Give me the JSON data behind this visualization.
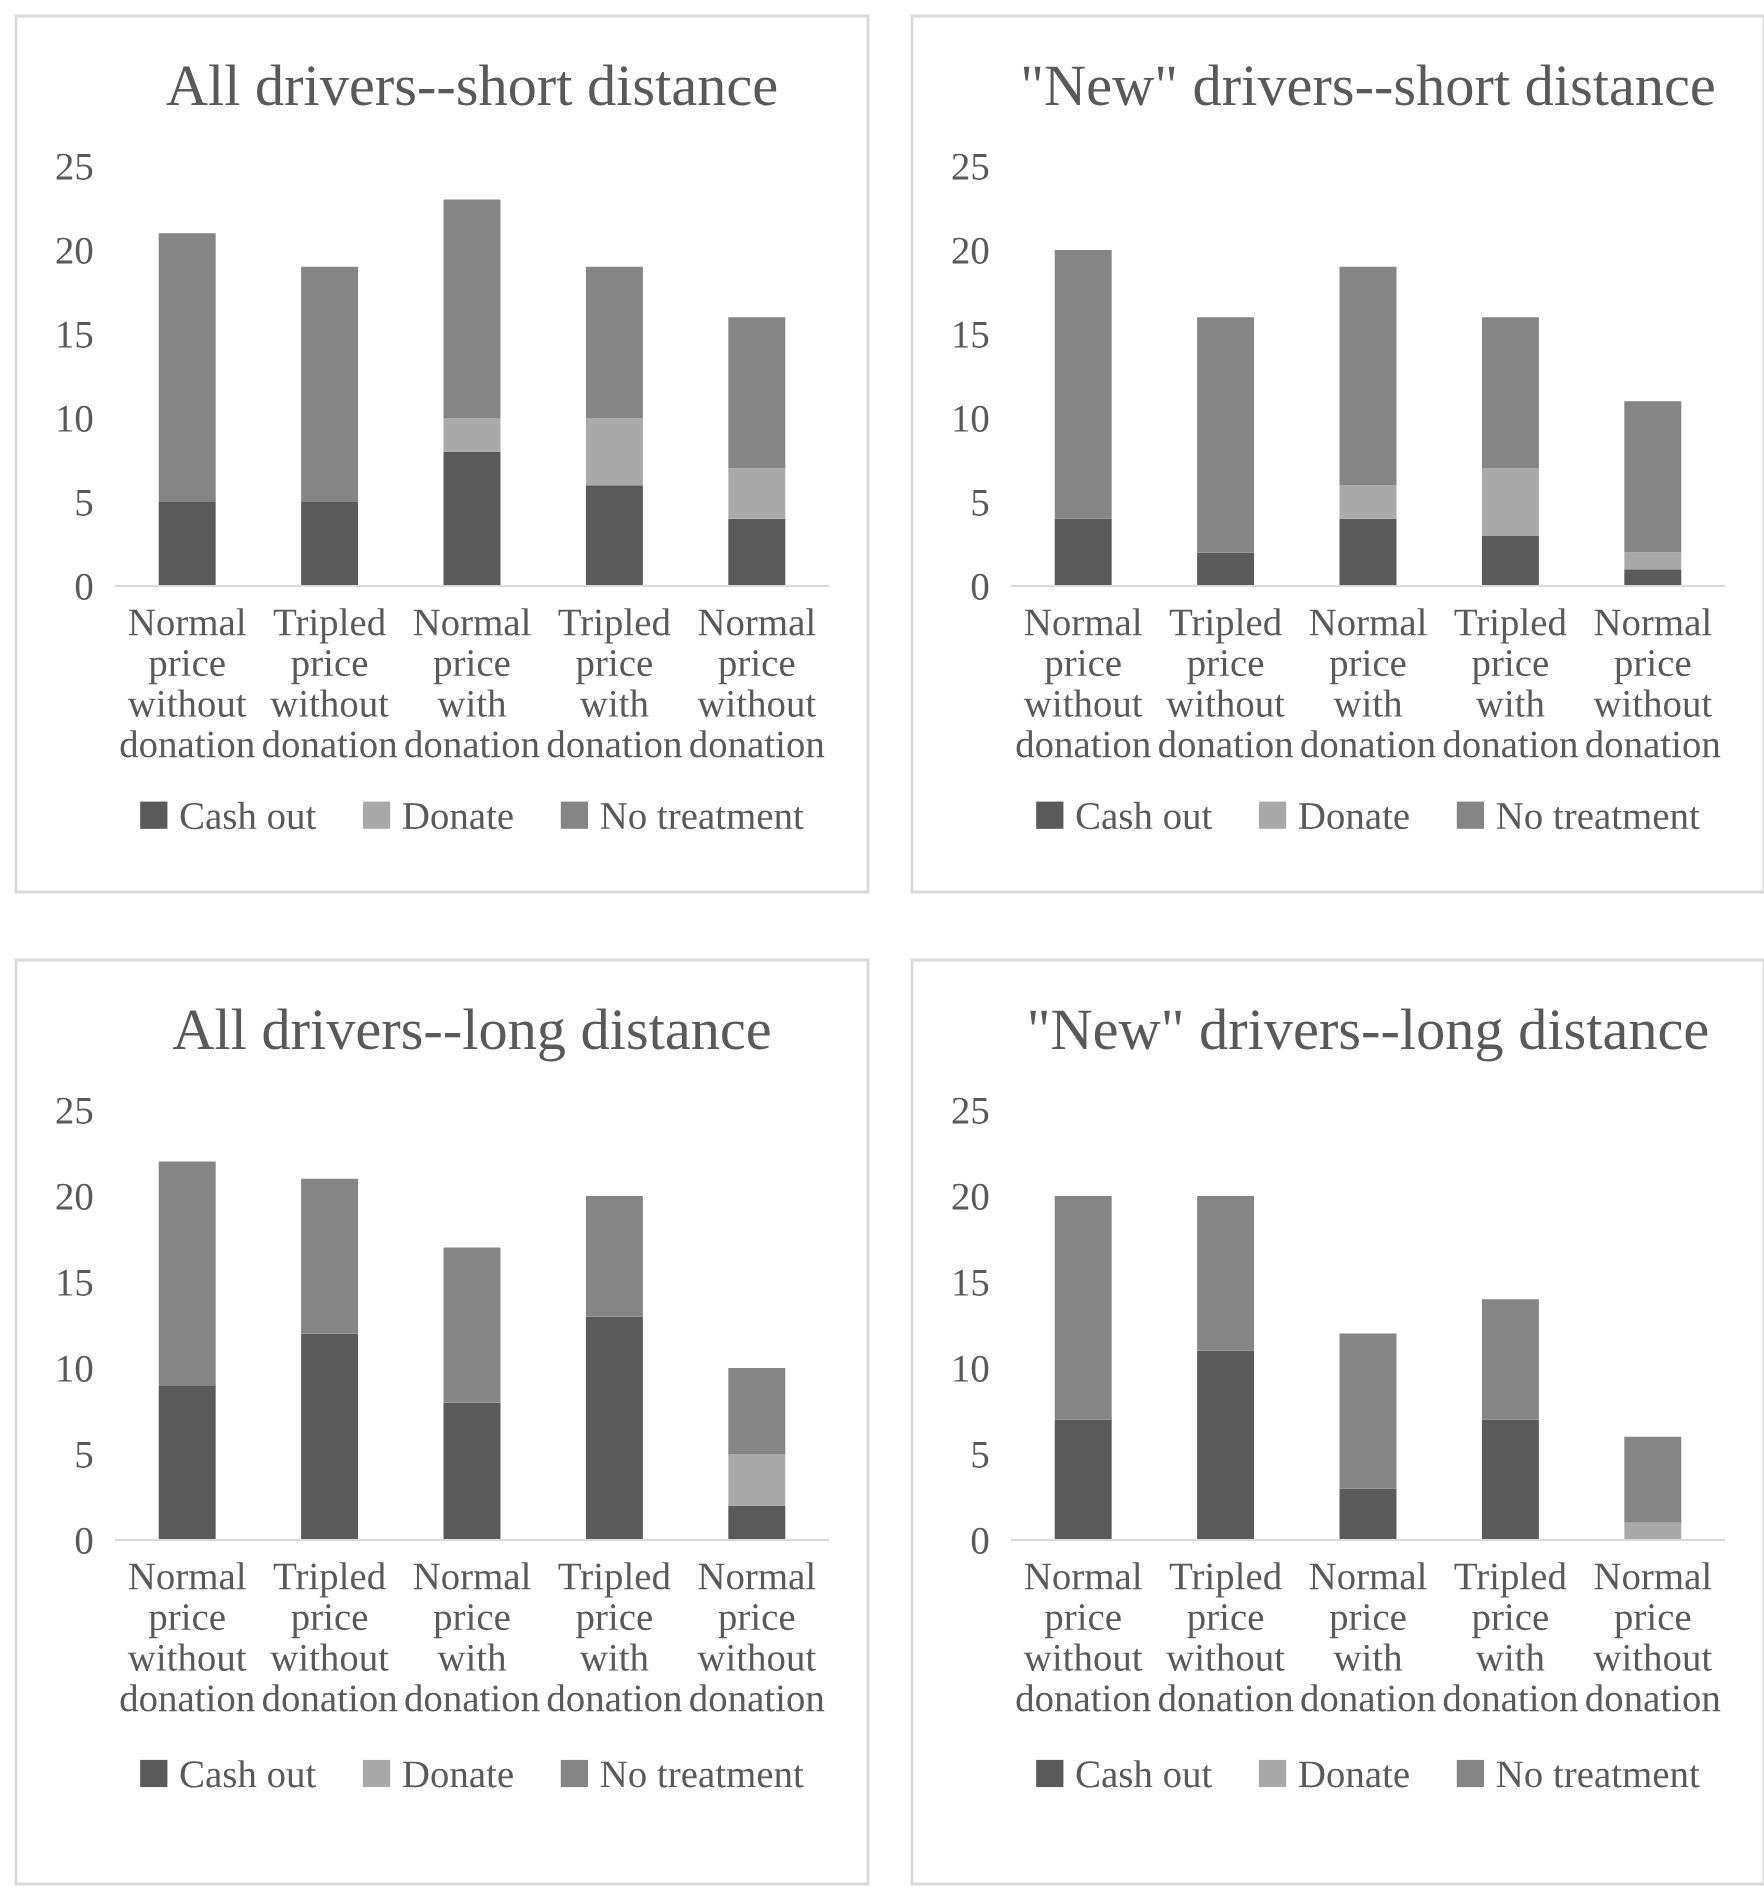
{
  "chart_data": [
    {
      "type": "bar",
      "title": "All drivers--short distance",
      "categories": [
        "Normal\nprice\nwithout\ndonation",
        "Tripled\nprice\nwithout\ndonation",
        "Normal\nprice\nwith\ndonation",
        "Tripled\nprice\nwith\ndonation",
        "Normal\nprice\nwithout\ndonation"
      ],
      "stacked": true,
      "ylim": [
        0,
        25
      ],
      "yticks": [
        0,
        5,
        10,
        15,
        20,
        25
      ],
      "grid": false,
      "legend": "bottom",
      "series": [
        {
          "name": "Cash out",
          "color": "#5a5a5a",
          "values": [
            5,
            5,
            8,
            6,
            4
          ]
        },
        {
          "name": "Donate",
          "color": "#a9a9a9",
          "values": [
            0,
            0,
            2,
            4,
            3
          ]
        },
        {
          "name": "No treatment",
          "color": "#858585",
          "values": [
            16,
            14,
            13,
            9,
            9
          ]
        }
      ]
    },
    {
      "type": "bar",
      "title": "\"New\" drivers--short distance",
      "categories": [
        "Normal\nprice\nwithout\ndonation",
        "Tripled\nprice\nwithout\ndonation",
        "Normal\nprice\nwith\ndonation",
        "Tripled\nprice\nwith\ndonation",
        "Normal\nprice\nwithout\ndonation"
      ],
      "stacked": true,
      "ylim": [
        0,
        25
      ],
      "yticks": [
        0,
        5,
        10,
        15,
        20,
        25
      ],
      "grid": false,
      "legend": "bottom",
      "series": [
        {
          "name": "Cash out",
          "color": "#5a5a5a",
          "values": [
            4,
            2,
            4,
            3,
            1
          ]
        },
        {
          "name": "Donate",
          "color": "#a9a9a9",
          "values": [
            0,
            0,
            2,
            4,
            1
          ]
        },
        {
          "name": "No treatment",
          "color": "#858585",
          "values": [
            16,
            14,
            13,
            9,
            9
          ]
        }
      ]
    },
    {
      "type": "bar",
      "title": "All drivers--long distance",
      "categories": [
        "Normal\nprice\nwithout\ndonation",
        "Tripled\nprice\nwithout\ndonation",
        "Normal\nprice\nwith\ndonation",
        "Tripled\nprice\nwith\ndonation",
        "Normal\nprice\nwithout\ndonation"
      ],
      "stacked": true,
      "ylim": [
        0,
        25
      ],
      "yticks": [
        0,
        5,
        10,
        15,
        20,
        25
      ],
      "grid": false,
      "legend": "bottom",
      "series": [
        {
          "name": "Cash out",
          "color": "#5a5a5a",
          "values": [
            9,
            12,
            8,
            13,
            2
          ]
        },
        {
          "name": "Donate",
          "color": "#a9a9a9",
          "values": [
            0,
            0,
            0,
            0,
            3
          ]
        },
        {
          "name": "No treatment",
          "color": "#858585",
          "values": [
            13,
            9,
            9,
            7,
            5
          ]
        }
      ]
    },
    {
      "type": "bar",
      "title": "\"New\" drivers--long distance",
      "categories": [
        "Normal\nprice\nwithout\ndonation",
        "Tripled\nprice\nwithout\ndonation",
        "Normal\nprice\nwith\ndonation",
        "Tripled\nprice\nwith\ndonation",
        "Normal\nprice\nwithout\ndonation"
      ],
      "stacked": true,
      "ylim": [
        0,
        25
      ],
      "yticks": [
        0,
        5,
        10,
        15,
        20,
        25
      ],
      "grid": false,
      "legend": "bottom",
      "series": [
        {
          "name": "Cash out",
          "color": "#5a5a5a",
          "values": [
            7,
            11,
            3,
            7,
            0
          ]
        },
        {
          "name": "Donate",
          "color": "#a9a9a9",
          "values": [
            0,
            0,
            0,
            0,
            1
          ]
        },
        {
          "name": "No treatment",
          "color": "#858585",
          "values": [
            13,
            9,
            9,
            7,
            5
          ]
        }
      ]
    }
  ]
}
